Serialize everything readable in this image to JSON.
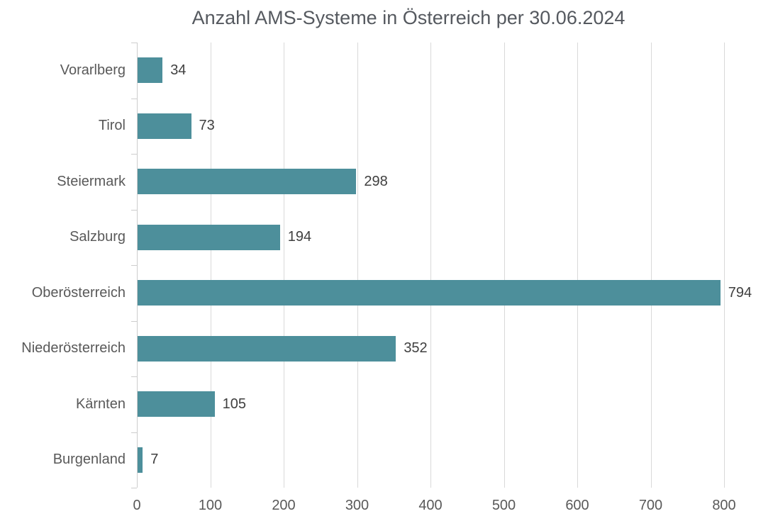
{
  "chart_data": {
    "type": "bar",
    "orientation": "horizontal",
    "title": "Anzahl AMS-Systeme in Österreich per 30.06.2024",
    "categories": [
      "Vorarlberg",
      "Tirol",
      "Steiermark",
      "Salzburg",
      "Oberösterreich",
      "Niederösterreich",
      "Kärnten",
      "Burgenland"
    ],
    "values": [
      34,
      73,
      298,
      194,
      794,
      352,
      105,
      7
    ],
    "data_labels_shown": true,
    "xlabel": "",
    "ylabel": "",
    "xlim": [
      0,
      800
    ],
    "x_ticks": [
      0,
      100,
      200,
      300,
      400,
      500,
      600,
      700,
      800
    ],
    "grid": true,
    "legend": false,
    "colors": {
      "bar": "#4d8f9b",
      "gridline": "#d9d9d9",
      "axis_line": "#cdcdcd",
      "category_label": "#595959",
      "value_label": "#3f3f3f",
      "title": "#55595f",
      "background": "#ffffff"
    }
  }
}
